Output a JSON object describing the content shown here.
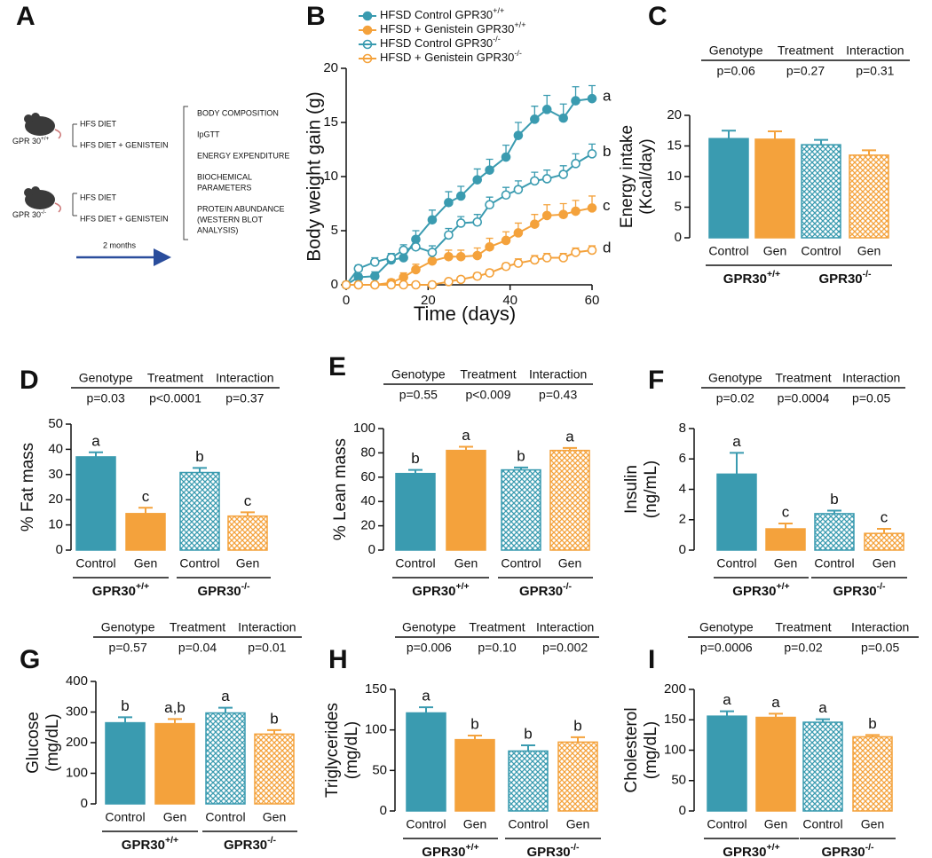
{
  "diagram": {
    "panel": "A",
    "mice": [
      {
        "label": "GPR 30",
        "sup": "+/+",
        "diets": [
          "HFS DIET",
          "HFS DIET + GENISTEIN"
        ]
      },
      {
        "label": "GPR 30",
        "sup": "-/-",
        "diets": [
          "HFS DIET",
          "HFS DIET + GENISTEIN"
        ]
      }
    ],
    "duration": "2 months",
    "outcomes": [
      [
        "BODY COMPOSITION"
      ],
      [
        "IpGTT"
      ],
      [
        "ENERGY EXPENDITURE"
      ],
      [
        "BIOCHEMICAL",
        "PARAMETERS"
      ],
      [
        "PROTEIN ABUNDANCE",
        "(WESTERN BLOT",
        "ANALYSIS)"
      ]
    ]
  },
  "chart_data": [
    {
      "type": "line",
      "panel": "B",
      "xlabel": "Time (days)",
      "ylabel": "Body weight gain (g)",
      "x": [
        0,
        3,
        7,
        11,
        14,
        17,
        21,
        25,
        28,
        32,
        35,
        39,
        42,
        46,
        49,
        53,
        56,
        60
      ],
      "xlim": [
        0,
        60
      ],
      "xticks": [
        0,
        20,
        40,
        60
      ],
      "ylim": [
        0,
        20
      ],
      "yticks": [
        0,
        5,
        10,
        15,
        20
      ],
      "series": [
        {
          "name": "HFSD Control GPR30",
          "sup": "+/+",
          "color": "#3a9bb0",
          "filled": true,
          "end_label": "a",
          "values": [
            0,
            0.7,
            0.8,
            2.3,
            2.5,
            4.2,
            6.0,
            7.6,
            8.2,
            9.7,
            10.6,
            11.8,
            13.8,
            15.3,
            16.2,
            15.4,
            17.0,
            17.2
          ],
          "errors": [
            0,
            0.3,
            0.4,
            0.5,
            0.6,
            0.8,
            0.9,
            1.0,
            0.9,
            1.0,
            1.0,
            1.1,
            1.2,
            1.2,
            1.3,
            1.3,
            1.3,
            1.2
          ]
        },
        {
          "name": "HFSD + Genistein GPR30",
          "sup": "+/+",
          "color": "#f4a23c",
          "filled": true,
          "end_label": "c",
          "values": [
            0,
            0,
            0,
            0.2,
            0.7,
            1.4,
            2.2,
            2.6,
            2.6,
            2.7,
            3.5,
            4.1,
            4.8,
            5.6,
            6.4,
            6.5,
            6.8,
            7.1
          ],
          "errors": [
            0,
            0.2,
            0.2,
            0.3,
            0.4,
            0.5,
            0.6,
            0.6,
            0.6,
            0.7,
            0.8,
            0.8,
            0.9,
            0.9,
            1.0,
            1.0,
            1.0,
            1.1
          ]
        },
        {
          "name": "HFSD Control GPR30",
          "sup": "-/-",
          "color": "#3a9bb0",
          "filled": false,
          "end_label": "b",
          "values": [
            0,
            1.5,
            2.1,
            2.5,
            3.2,
            3.5,
            3.0,
            4.6,
            5.7,
            5.8,
            7.4,
            8.3,
            8.8,
            9.6,
            9.8,
            10.2,
            11.2,
            12.1
          ],
          "errors": [
            0,
            0.3,
            0.4,
            0.4,
            0.5,
            0.5,
            0.6,
            0.6,
            0.6,
            0.7,
            0.7,
            0.7,
            0.8,
            0.8,
            0.8,
            0.8,
            0.9,
            0.9
          ]
        },
        {
          "name": "HFSD + Genistein GPR30",
          "sup": "-/-",
          "color": "#f4a23c",
          "filled": false,
          "end_label": "d",
          "values": [
            0,
            0,
            0,
            0,
            0,
            0,
            0,
            0.3,
            0.5,
            0.8,
            1.1,
            1.7,
            2.0,
            2.3,
            2.5,
            2.5,
            3.0,
            3.2
          ],
          "errors": [
            0,
            0,
            0,
            0,
            0,
            0,
            0,
            0.2,
            0.2,
            0.3,
            0.3,
            0.3,
            0.4,
            0.4,
            0.4,
            0.4,
            0.4,
            0.4
          ]
        }
      ]
    },
    {
      "type": "bar",
      "panel": "C",
      "ylabel": [
        "Energy intake",
        "(Kcal/day)"
      ],
      "stats": [
        "Genotype",
        "Treatment",
        "Interaction"
      ],
      "pvalues": [
        "p=0.06",
        "p=0.27",
        "p=0.31"
      ],
      "categories": [
        "Control",
        "Gen",
        "Control",
        "Gen"
      ],
      "colors": [
        "#3a9bb0",
        "#f4a23c",
        "#3a9bb0",
        "#f4a23c"
      ],
      "hatched": [
        false,
        false,
        true,
        true
      ],
      "groups": [
        {
          "name": "GPR30",
          "sup": "+/+"
        },
        {
          "name": "GPR30",
          "sup": "-/-"
        }
      ],
      "values": [
        16.2,
        16.1,
        15.2,
        13.5
      ],
      "errors": [
        1.3,
        1.3,
        0.8,
        0.8
      ],
      "ylim": [
        0,
        20
      ],
      "yticks": [
        0,
        5,
        10,
        15,
        20
      ]
    },
    {
      "type": "bar",
      "panel": "D",
      "ylabel": [
        "% Fat mass"
      ],
      "stats": [
        "Genotype",
        "Treatment",
        "Interaction"
      ],
      "pvalues": [
        "p=0.03",
        "p<0.0001",
        "p=0.37"
      ],
      "categories": [
        "Control",
        "Gen",
        "Control",
        "Gen"
      ],
      "colors": [
        "#3a9bb0",
        "#f4a23c",
        "#3a9bb0",
        "#f4a23c"
      ],
      "hatched": [
        false,
        false,
        true,
        true
      ],
      "groups": [
        {
          "name": "GPR30",
          "sup": "+/+"
        },
        {
          "name": "GPR30",
          "sup": "-/-"
        }
      ],
      "values": [
        37,
        14.5,
        30.8,
        13.5
      ],
      "errors": [
        1.8,
        2.3,
        1.8,
        1.5
      ],
      "letters": [
        "a",
        "c",
        "b",
        "c"
      ],
      "ylim": [
        0,
        50
      ],
      "yticks": [
        0,
        10,
        20,
        30,
        40,
        50
      ]
    },
    {
      "type": "bar",
      "panel": "E",
      "ylabel": [
        "% Lean mass"
      ],
      "stats": [
        "Genotype",
        "Treatment",
        "Interaction"
      ],
      "pvalues": [
        "p=0.55",
        "p<0.009",
        "p=0.43"
      ],
      "categories": [
        "Control",
        "Gen",
        "Control",
        "Gen"
      ],
      "colors": [
        "#3a9bb0",
        "#f4a23c",
        "#3a9bb0",
        "#f4a23c"
      ],
      "hatched": [
        false,
        false,
        true,
        true
      ],
      "groups": [
        {
          "name": "GPR30",
          "sup": "+/+"
        },
        {
          "name": "GPR30",
          "sup": "-/-"
        }
      ],
      "values": [
        63,
        82,
        66,
        82
      ],
      "errors": [
        3,
        3,
        2,
        2
      ],
      "letters": [
        "b",
        "a",
        "b",
        "a"
      ],
      "ylim": [
        0,
        100
      ],
      "yticks": [
        0,
        20,
        40,
        60,
        80,
        100
      ]
    },
    {
      "type": "bar",
      "panel": "F",
      "ylabel": [
        "Insulin",
        "(ng/mL)"
      ],
      "stats": [
        "Genotype",
        "Treatment",
        "Interaction"
      ],
      "pvalues": [
        "p=0.02",
        "p=0.0004",
        "p=0.05"
      ],
      "categories": [
        "Control",
        "Gen",
        "Control",
        "Gen"
      ],
      "colors": [
        "#3a9bb0",
        "#f4a23c",
        "#3a9bb0",
        "#f4a23c"
      ],
      "hatched": [
        false,
        false,
        true,
        true
      ],
      "groups": [
        {
          "name": "GPR30",
          "sup": "+/+"
        },
        {
          "name": "GPR30",
          "sup": "-/-"
        }
      ],
      "values": [
        5.0,
        1.4,
        2.4,
        1.1
      ],
      "errors": [
        1.4,
        0.35,
        0.2,
        0.3
      ],
      "letters": [
        "a",
        "c",
        "b",
        "c"
      ],
      "ylim": [
        0,
        8
      ],
      "yticks": [
        0,
        2,
        4,
        6,
        8
      ]
    },
    {
      "type": "bar",
      "panel": "G",
      "ylabel": [
        "Glucose",
        "(mg/dL)"
      ],
      "stats": [
        "Genotype",
        "Treatment",
        "Interaction"
      ],
      "pvalues": [
        "p=0.57",
        "p=0.04",
        "p=0.01"
      ],
      "categories": [
        "Control",
        "Gen",
        "Control",
        "Gen"
      ],
      "colors": [
        "#3a9bb0",
        "#f4a23c",
        "#3a9bb0",
        "#f4a23c"
      ],
      "hatched": [
        false,
        false,
        true,
        true
      ],
      "groups": [
        {
          "name": "GPR30",
          "sup": "+/+"
        },
        {
          "name": "GPR30",
          "sup": "-/-"
        }
      ],
      "values": [
        265,
        262,
        297,
        228
      ],
      "errors": [
        18,
        15,
        17,
        13
      ],
      "letters": [
        "b",
        "a,b",
        "a",
        "b"
      ],
      "ylim": [
        0,
        400
      ],
      "yticks": [
        0,
        100,
        200,
        300,
        400
      ]
    },
    {
      "type": "bar",
      "panel": "H",
      "ylabel": [
        "Triglycerides",
        "(mg/dL)"
      ],
      "stats": [
        "Genotype",
        "Treatment",
        "Interaction"
      ],
      "pvalues": [
        "p=0.006",
        "p=0.10",
        "p=0.002"
      ],
      "categories": [
        "Control",
        "Gen",
        "Control",
        "Gen"
      ],
      "colors": [
        "#3a9bb0",
        "#f4a23c",
        "#3a9bb0",
        "#f4a23c"
      ],
      "hatched": [
        false,
        false,
        true,
        true
      ],
      "groups": [
        {
          "name": "GPR30",
          "sup": "+/+"
        },
        {
          "name": "GPR30",
          "sup": "-/-"
        }
      ],
      "values": [
        121,
        88,
        74,
        85
      ],
      "errors": [
        7,
        5,
        7,
        6
      ],
      "letters": [
        "a",
        "b",
        "b",
        "b"
      ],
      "ylim": [
        0,
        150
      ],
      "yticks": [
        0,
        50,
        100,
        150
      ]
    },
    {
      "type": "bar",
      "panel": "I",
      "ylabel": [
        "Cholesterol",
        "(mg/dL)"
      ],
      "stats": [
        "Genotype",
        "Treatment",
        "Interaction"
      ],
      "pvalues": [
        "p=0.0006",
        "p=0.02",
        "p=0.05"
      ],
      "categories": [
        "Control",
        "Gen",
        "Control",
        "Gen"
      ],
      "colors": [
        "#3a9bb0",
        "#f4a23c",
        "#3a9bb0",
        "#f4a23c"
      ],
      "hatched": [
        false,
        false,
        true,
        true
      ],
      "groups": [
        {
          "name": "GPR30",
          "sup": "+/+"
        },
        {
          "name": "GPR30",
          "sup": "-/-"
        }
      ],
      "values": [
        156,
        154,
        146,
        122
      ],
      "errors": [
        8,
        6,
        5,
        3
      ],
      "letters": [
        "a",
        "a",
        "a",
        "b"
      ],
      "ylim": [
        0,
        200
      ],
      "yticks": [
        0,
        50,
        100,
        150,
        200
      ]
    }
  ]
}
